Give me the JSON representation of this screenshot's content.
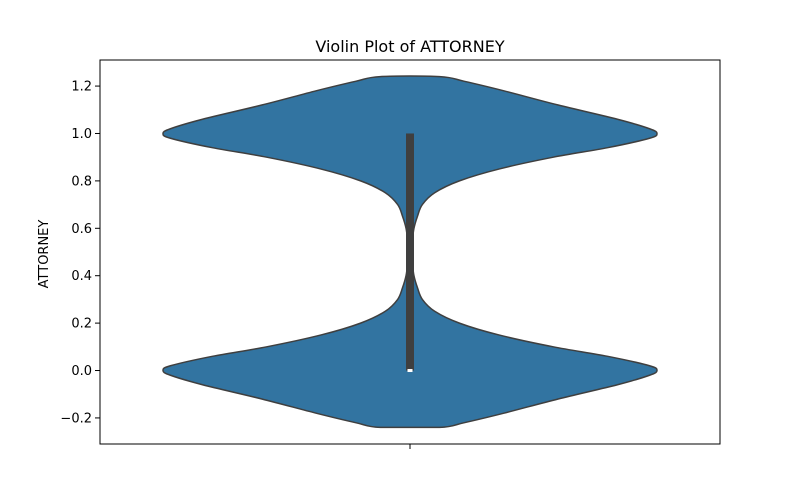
{
  "chart_data": {
    "type": "violin",
    "title": "Violin Plot of ATTORNEY",
    "xlabel": "",
    "ylabel": "ATTORNEY",
    "ylim": [
      -0.31,
      1.31
    ],
    "yticks": [
      -0.2,
      0.0,
      0.2,
      0.4,
      0.6,
      0.8,
      1.0,
      1.2
    ],
    "ytick_labels": [
      "−0.2",
      "0.0",
      "0.2",
      "0.4",
      "0.6",
      "0.8",
      "1.0",
      "1.2"
    ],
    "grid": false,
    "legend": "none",
    "series": [
      {
        "name": "ATTORNEY",
        "color": "#3274a1",
        "outline_color": "#3f3f3f",
        "support": [
          -0.24,
          1.24
        ],
        "density_profile": [
          [
            -0.24,
            0.12
          ],
          [
            -0.22,
            0.22
          ],
          [
            -0.18,
            0.38
          ],
          [
            -0.12,
            0.6
          ],
          [
            -0.06,
            0.84
          ],
          [
            -0.02,
            0.97
          ],
          [
            0.0,
            1.0
          ],
          [
            0.02,
            0.97
          ],
          [
            0.06,
            0.8
          ],
          [
            0.1,
            0.58
          ],
          [
            0.15,
            0.36
          ],
          [
            0.2,
            0.2
          ],
          [
            0.25,
            0.1
          ],
          [
            0.3,
            0.05
          ],
          [
            0.35,
            0.03
          ],
          [
            0.4,
            0.016
          ],
          [
            0.45,
            0.01
          ],
          [
            0.5,
            0.008
          ],
          [
            0.55,
            0.01
          ],
          [
            0.6,
            0.016
          ],
          [
            0.65,
            0.03
          ],
          [
            0.7,
            0.05
          ],
          [
            0.75,
            0.1
          ],
          [
            0.8,
            0.2
          ],
          [
            0.85,
            0.36
          ],
          [
            0.9,
            0.58
          ],
          [
            0.94,
            0.8
          ],
          [
            0.98,
            0.97
          ],
          [
            1.0,
            1.0
          ],
          [
            1.02,
            0.97
          ],
          [
            1.06,
            0.84
          ],
          [
            1.12,
            0.6
          ],
          [
            1.18,
            0.38
          ],
          [
            1.22,
            0.22
          ],
          [
            1.24,
            0.12
          ]
        ],
        "quartiles": {
          "min": 0.0,
          "q1": 0.0,
          "median": 0.0,
          "q3": 1.0,
          "max": 1.0
        }
      }
    ]
  }
}
